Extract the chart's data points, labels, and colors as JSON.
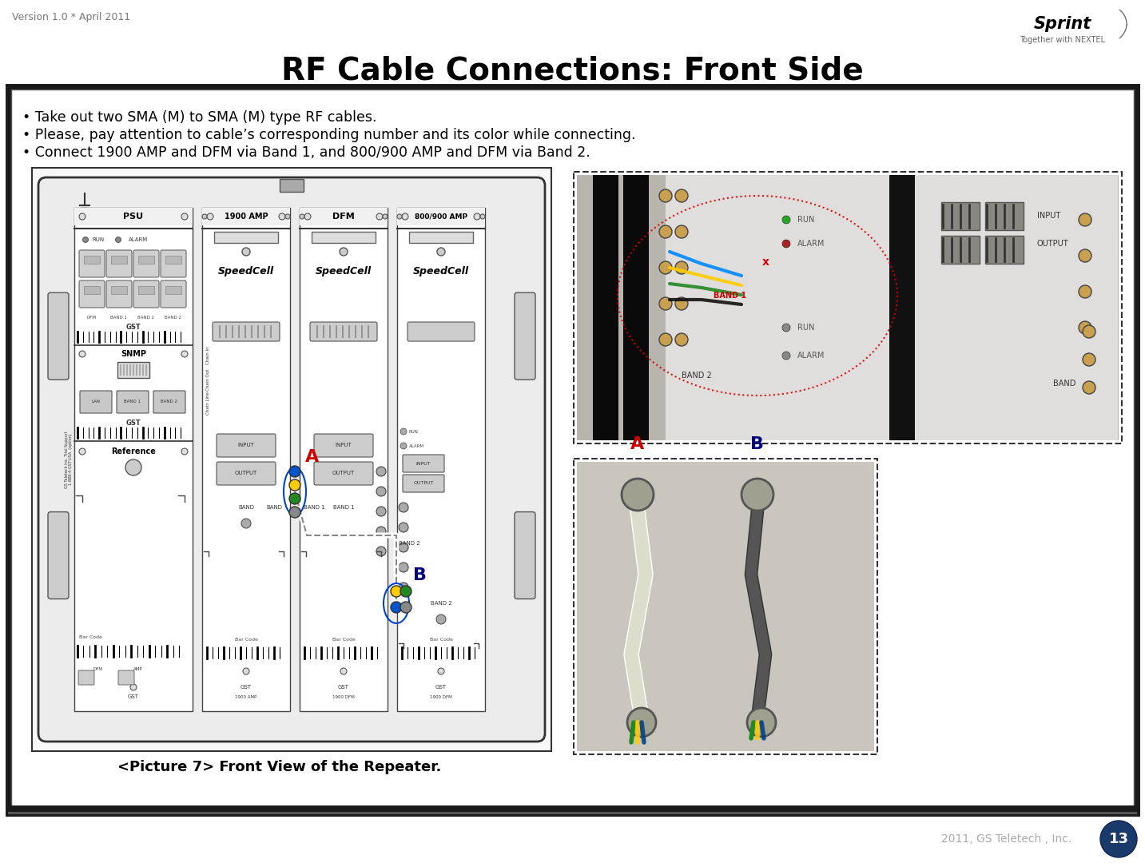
{
  "title": "RF Cable Connections: Front Side",
  "version_text": "Version 1.0 * April 2011",
  "footer_text": "2011, GS Teletech , Inc.",
  "page_number": "13",
  "bullet_points": [
    "• Take out two SMA (M) to SMA (M) type RF cables.",
    "• Please, pay attention to cable’s corresponding number and its color while connecting.",
    "• Connect 1900 AMP and DFM via Band 1, and 800/900 AMP and DFM via Band 2."
  ],
  "caption": "<Picture 7> Front View of the Repeater.",
  "bg_color": "#ffffff",
  "title_color": "#000000",
  "border_outer_color": "#1a1a1a",
  "footer_color": "#aaaaaa",
  "page_num_bg": "#1a3a6b"
}
